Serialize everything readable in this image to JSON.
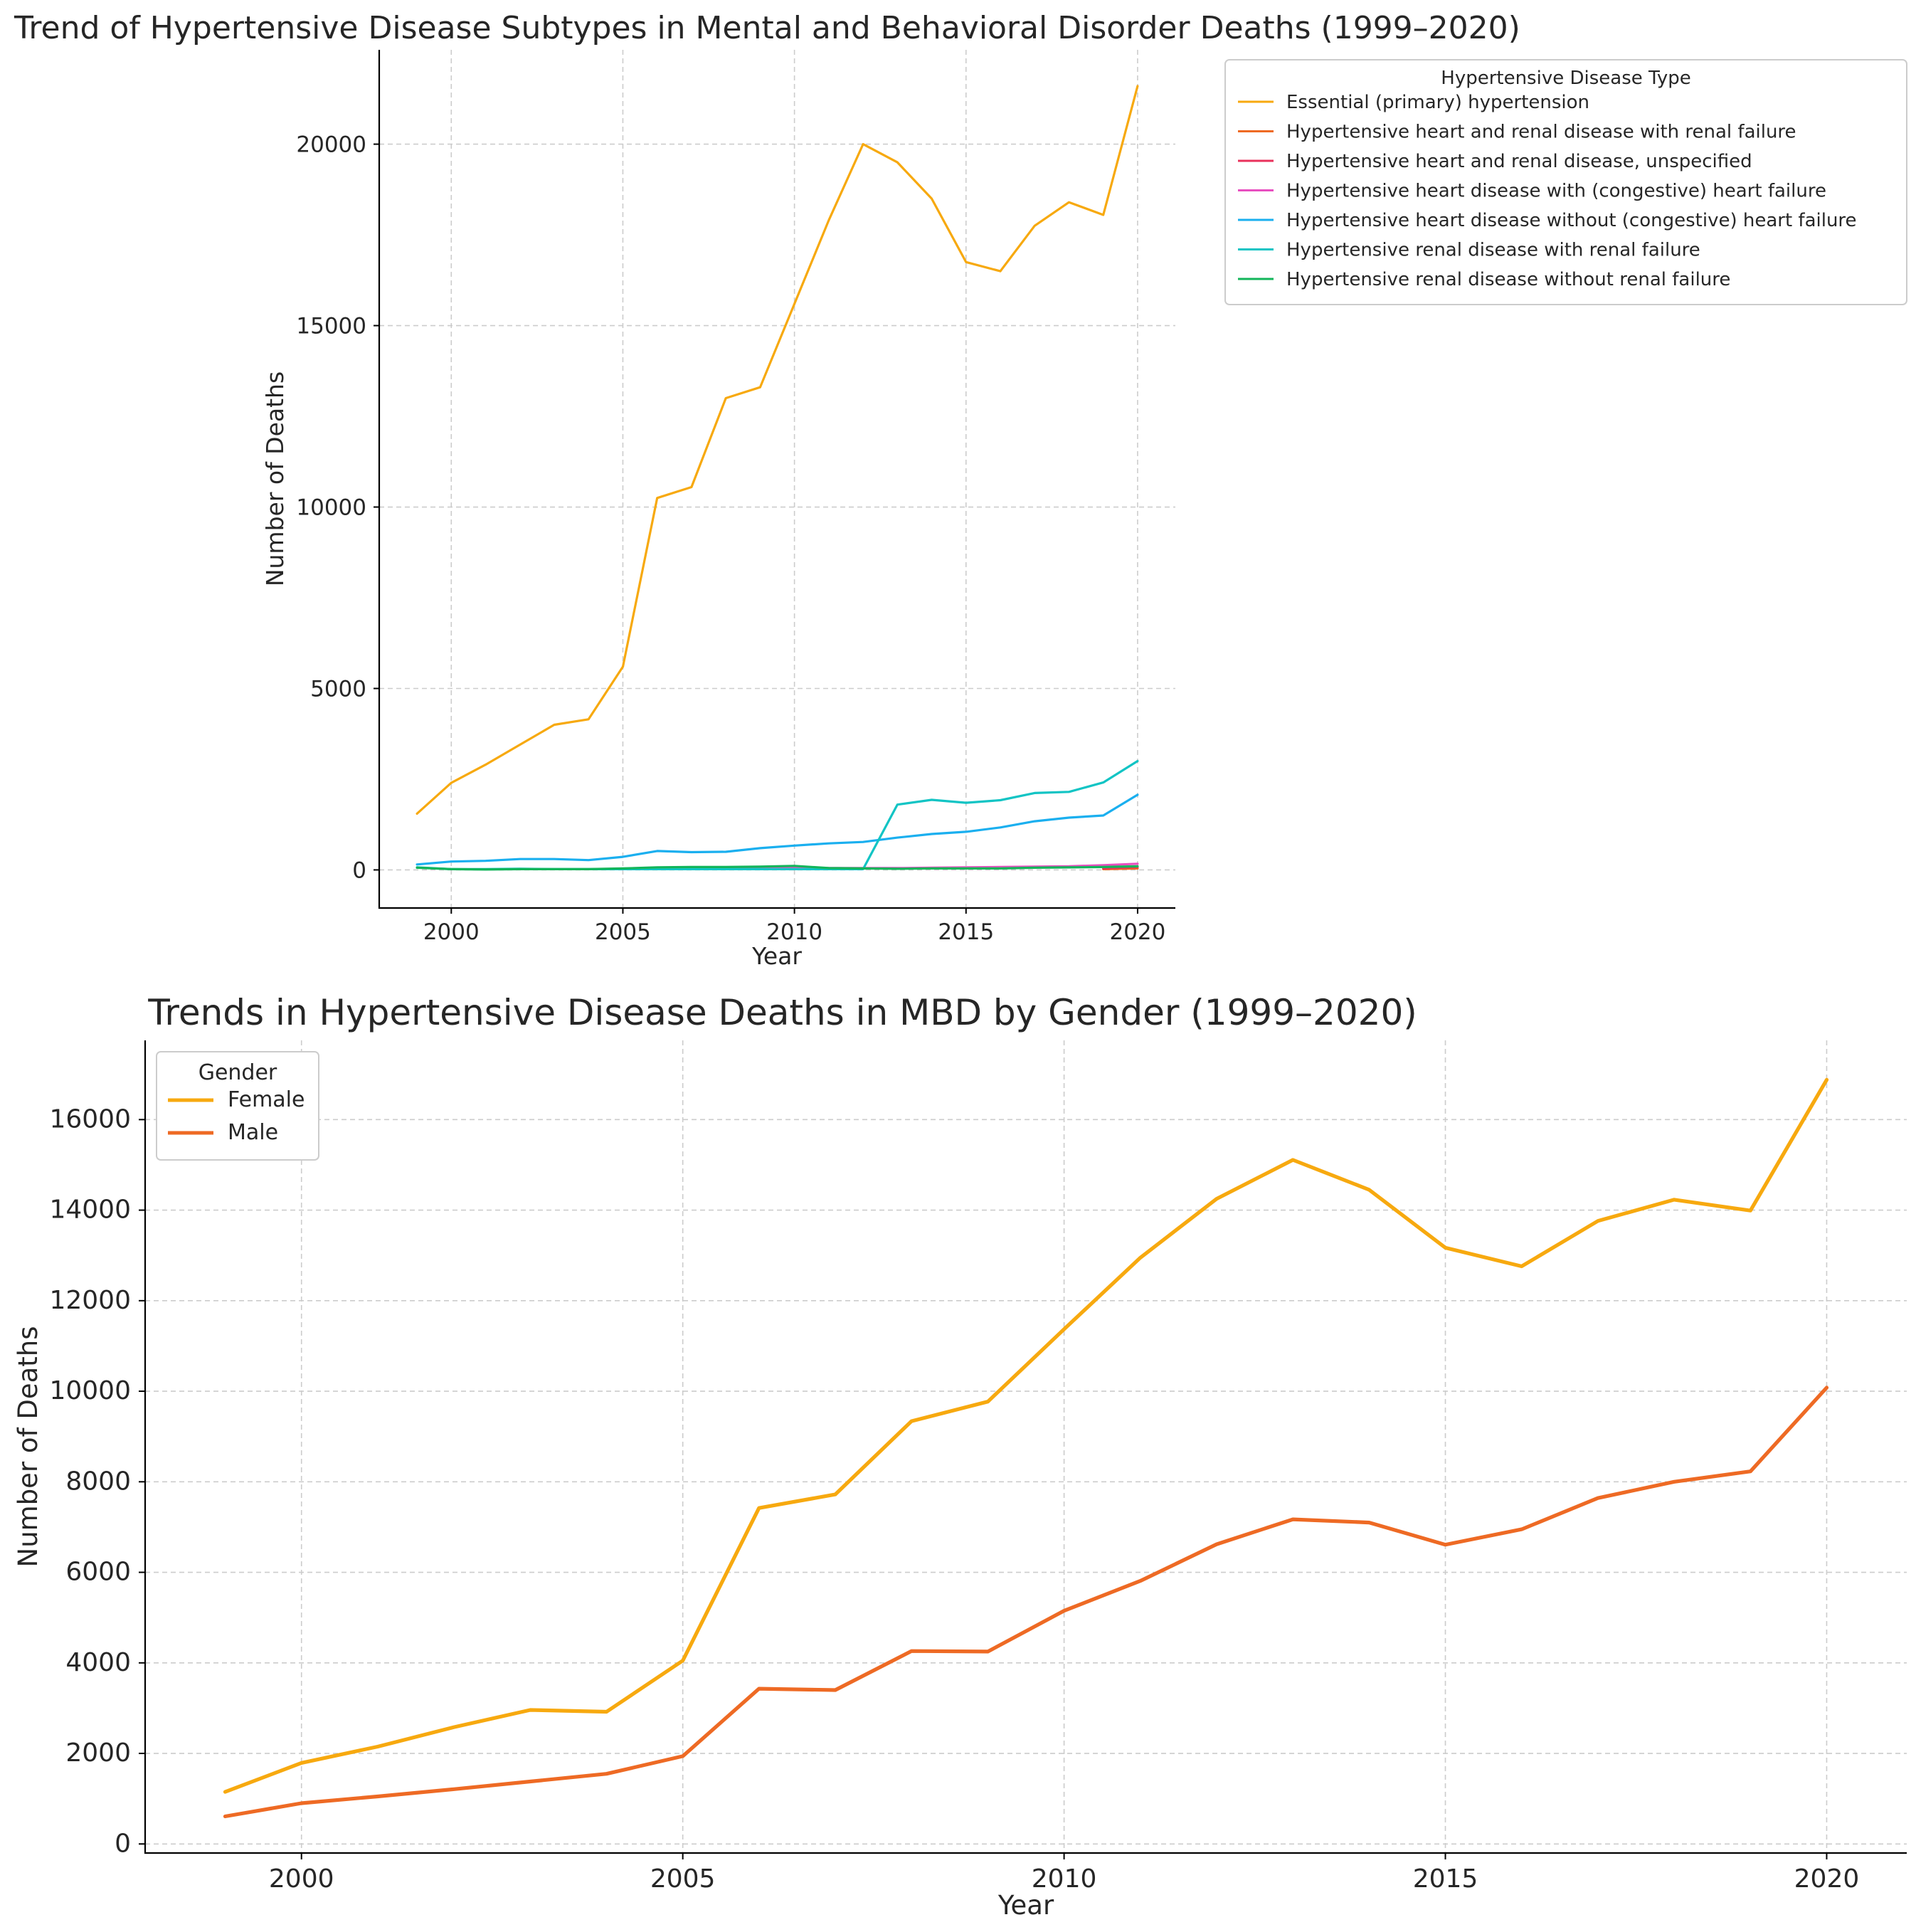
{
  "chart_data": [
    {
      "type": "line",
      "title": "Trend of Hypertensive Disease Subtypes in Mental and Behavioral Disorder Deaths (1999–2020)",
      "xlabel": "Year",
      "ylabel": "Number of Deaths",
      "xlim": [
        1997.9,
        2021.1
      ],
      "ylim": [
        -1050,
        22600
      ],
      "xticks": [
        2000,
        2005,
        2010,
        2015,
        2020
      ],
      "yticks": [
        0,
        5000,
        10000,
        15000,
        20000
      ],
      "xtick_labels": [
        "2000",
        "2005",
        "2010",
        "2015",
        "2020"
      ],
      "ytick_labels": [
        "0",
        "5000",
        "10000",
        "15000",
        "20000"
      ],
      "grid": true,
      "legend": {
        "title": "Hypertensive Disease Type",
        "placement": "outside-top-right"
      },
      "series": [
        {
          "name": "Essential (primary) hypertension",
          "color": "#F7A90F",
          "x": [
            1999,
            2000,
            2001,
            2002,
            2003,
            2004,
            2005,
            2006,
            2007,
            2008,
            2009,
            2010,
            2011,
            2012,
            2013,
            2014,
            2015,
            2016,
            2017,
            2018,
            2019,
            2020
          ],
          "values": [
            1550,
            2400,
            2900,
            3450,
            4000,
            4150,
            5600,
            10250,
            10550,
            13000,
            13300,
            15600,
            17900,
            20000,
            19500,
            18500,
            16750,
            16500,
            17750,
            18400,
            18050,
            21600
          ]
        },
        {
          "name": "Hypertensive heart and renal disease with renal failure",
          "color": "#EE6A24",
          "x": [
            2019,
            2020
          ],
          "values": [
            20,
            40
          ]
        },
        {
          "name": "Hypertensive heart and renal disease, unspecified",
          "color": "#E8315B",
          "x": [
            2019,
            2020
          ],
          "values": [
            40,
            80
          ]
        },
        {
          "name": "Hypertensive heart disease with (congestive) heart failure",
          "color": "#E84FC0",
          "x": [
            2005,
            2006,
            2007,
            2008,
            2009,
            2010,
            2011,
            2012,
            2013,
            2014,
            2015,
            2016,
            2017,
            2018,
            2019,
            2020
          ],
          "values": [
            30,
            50,
            50,
            60,
            60,
            50,
            50,
            50,
            50,
            60,
            70,
            80,
            90,
            100,
            130,
            170
          ]
        },
        {
          "name": "Hypertensive heart disease without (congestive) heart failure",
          "color": "#1AAFEF",
          "x": [
            1999,
            2000,
            2001,
            2002,
            2003,
            2004,
            2005,
            2006,
            2007,
            2008,
            2009,
            2010,
            2011,
            2012,
            2013,
            2014,
            2015,
            2016,
            2017,
            2018,
            2019,
            2020
          ],
          "values": [
            150,
            230,
            250,
            300,
            300,
            270,
            360,
            520,
            490,
            500,
            600,
            670,
            730,
            770,
            890,
            990,
            1050,
            1170,
            1340,
            1440,
            1500,
            2070
          ]
        },
        {
          "name": "Hypertensive renal disease with renal failure",
          "color": "#12C4C4",
          "x": [
            1999,
            2000,
            2001,
            2002,
            2003,
            2004,
            2005,
            2006,
            2007,
            2008,
            2009,
            2010,
            2011,
            2012,
            2013,
            2014,
            2015,
            2016,
            2017,
            2018,
            2019,
            2020
          ],
          "values": [
            70,
            20,
            20,
            30,
            20,
            20,
            20,
            20,
            20,
            20,
            20,
            20,
            20,
            20,
            1800,
            1930,
            1850,
            1920,
            2120,
            2150,
            2410,
            3000
          ]
        },
        {
          "name": "Hypertensive renal disease without renal failure",
          "color": "#12B55A",
          "x": [
            1999,
            2000,
            2001,
            2002,
            2003,
            2004,
            2005,
            2006,
            2007,
            2008,
            2009,
            2010,
            2011,
            2012,
            2013,
            2014,
            2015,
            2016,
            2017,
            2018,
            2019,
            2020
          ],
          "values": [
            60,
            20,
            10,
            20,
            20,
            20,
            40,
            70,
            80,
            80,
            90,
            110,
            50,
            40,
            30,
            40,
            40,
            40,
            60,
            70,
            80,
            100
          ]
        }
      ]
    },
    {
      "type": "line",
      "title": "Trends in Hypertensive Disease Deaths in MBD by Gender (1999–2020)",
      "xlabel": "Year",
      "ylabel": "Number of Deaths",
      "xlim": [
        1997.95,
        2021.05
      ],
      "ylim": [
        -200,
        17750
      ],
      "xticks": [
        2000,
        2005,
        2010,
        2015,
        2020
      ],
      "yticks": [
        0,
        2000,
        4000,
        6000,
        8000,
        10000,
        12000,
        14000,
        16000
      ],
      "xtick_labels": [
        "2000",
        "2005",
        "2010",
        "2015",
        "2020"
      ],
      "ytick_labels": [
        "0",
        "2000",
        "4000",
        "6000",
        "8000",
        "10000",
        "12000",
        "14000",
        "16000"
      ],
      "grid": true,
      "legend": {
        "title": "Gender",
        "placement": "top-left"
      },
      "series": [
        {
          "name": "Female",
          "color": "#F7A90F",
          "x": [
            1999,
            2000,
            2001,
            2002,
            2003,
            2004,
            2005,
            2006,
            2007,
            2008,
            2009,
            2010,
            2011,
            2012,
            2013,
            2014,
            2015,
            2016,
            2017,
            2018,
            2019,
            2020
          ],
          "values": [
            1150,
            1790,
            2150,
            2580,
            2960,
            2920,
            4050,
            7420,
            7720,
            9340,
            9770,
            11370,
            12950,
            14250,
            15110,
            14450,
            13170,
            12760,
            13760,
            14230,
            13990,
            16880
          ]
        },
        {
          "name": "Male",
          "color": "#EE6A24",
          "x": [
            1999,
            2000,
            2001,
            2002,
            2003,
            2004,
            2005,
            2006,
            2007,
            2008,
            2009,
            2010,
            2011,
            2012,
            2013,
            2014,
            2015,
            2016,
            2017,
            2018,
            2019,
            2020
          ],
          "values": [
            610,
            900,
            1050,
            1210,
            1380,
            1550,
            1940,
            3430,
            3400,
            4260,
            4250,
            5150,
            5810,
            6620,
            7170,
            7100,
            6610,
            6950,
            7640,
            8000,
            8230,
            10080
          ]
        }
      ]
    }
  ]
}
